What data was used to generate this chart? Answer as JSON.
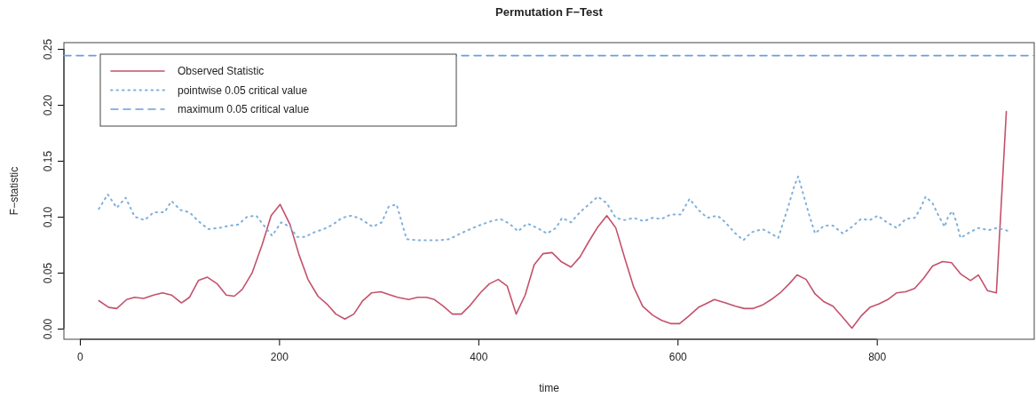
{
  "chart_data": {
    "type": "line",
    "title": "Permutation F−Test",
    "xlabel": "time",
    "ylabel": "F−statistic",
    "xlim": [
      -16,
      958
    ],
    "ylim": [
      -0.0095,
      0.2556
    ],
    "xticks": [
      0,
      200,
      400,
      600,
      800
    ],
    "yticks": [
      {
        "value": 0,
        "label": "0.00"
      },
      {
        "value": 0.05,
        "label": "0.05"
      },
      {
        "value": 0.1,
        "label": "0.10"
      },
      {
        "value": 0.15,
        "label": "0.15"
      },
      {
        "value": 0.2,
        "label": "0.20"
      },
      {
        "value": 0.25,
        "label": "0.25"
      }
    ],
    "grid": false,
    "legend": "top left",
    "marker": "none",
    "series": [
      {
        "name": "Observed Statistic",
        "color": "#c4516b",
        "line_style": "solid",
        "x": [
          19,
          29,
          37,
          47,
          55,
          64,
          74,
          83,
          92,
          102,
          110,
          119,
          128,
          138,
          147,
          155,
          163,
          173,
          183,
          192,
          201,
          211,
          220,
          229,
          239,
          248,
          257,
          266,
          275,
          284,
          293,
          302,
          312,
          319,
          330,
          339,
          348,
          356,
          365,
          374,
          383,
          392,
          402,
          411,
          420,
          429,
          438,
          447,
          456,
          465,
          474,
          483,
          493,
          502,
          511,
          520,
          529,
          538,
          547,
          556,
          565,
          575,
          584,
          593,
          602,
          611,
          621,
          628,
          637,
          648,
          658,
          667,
          676,
          685,
          694,
          703,
          712,
          720,
          729,
          738,
          747,
          756,
          765,
          775,
          784,
          793,
          802,
          811,
          820,
          829,
          838,
          847,
          856,
          866,
          875,
          884,
          894,
          902,
          911,
          920,
          930
        ],
        "values": [
          0.025,
          0.019,
          0.018,
          0.026,
          0.028,
          0.027,
          0.03,
          0.032,
          0.03,
          0.023,
          0.028,
          0.043,
          0.046,
          0.04,
          0.03,
          0.029,
          0.035,
          0.05,
          0.075,
          0.101,
          0.111,
          0.093,
          0.066,
          0.044,
          0.029,
          0.022,
          0.013,
          0.0085,
          0.013,
          0.025,
          0.032,
          0.033,
          0.03,
          0.028,
          0.026,
          0.028,
          0.028,
          0.026,
          0.02,
          0.013,
          0.013,
          0.021,
          0.032,
          0.04,
          0.044,
          0.038,
          0.013,
          0.03,
          0.057,
          0.067,
          0.068,
          0.06,
          0.055,
          0.064,
          0.078,
          0.091,
          0.101,
          0.09,
          0.063,
          0.037,
          0.02,
          0.012,
          0.0074,
          0.0045,
          0.0045,
          0.011,
          0.019,
          0.022,
          0.026,
          0.023,
          0.02,
          0.018,
          0.018,
          0.021,
          0.026,
          0.032,
          0.04,
          0.048,
          0.044,
          0.031,
          0.024,
          0.02,
          0.011,
          0.0005,
          0.011,
          0.019,
          0.022,
          0.026,
          0.032,
          0.033,
          0.036,
          0.045,
          0.056,
          0.06,
          0.059,
          0.049,
          0.043,
          0.048,
          0.034,
          0.032,
          0.194
        ]
      },
      {
        "name": "pointwise 0.05 critical value",
        "color": "#7fb0dc",
        "line_style": "dotted",
        "x": [
          19,
          28,
          37,
          46,
          55,
          65,
          74,
          85,
          92,
          101,
          110,
          119,
          129,
          140,
          150,
          159,
          168,
          177,
          184,
          193,
          202,
          211,
          218,
          226,
          235,
          245,
          254,
          263,
          273,
          282,
          294,
          303,
          310,
          318,
          328,
          339,
          350,
          361,
          371,
          382,
          392,
          403,
          413,
          422,
          431,
          440,
          449,
          459,
          469,
          478,
          484,
          493,
          502,
          511,
          520,
          529,
          538,
          547,
          556,
          566,
          575,
          584,
          593,
          603,
          612,
          621,
          630,
          640,
          648,
          657,
          666,
          674,
          685,
          694,
          701,
          710,
          717,
          721,
          725,
          732,
          738,
          747,
          756,
          766,
          775,
          784,
          793,
          801,
          810,
          820,
          829,
          838,
          843,
          849,
          856,
          862,
          868,
          872,
          876,
          880,
          884,
          893,
          902,
          912,
          921,
          933
        ],
        "values": [
          0.107,
          0.12,
          0.108,
          0.117,
          0.1,
          0.097,
          0.104,
          0.104,
          0.114,
          0.106,
          0.104,
          0.096,
          0.089,
          0.09,
          0.092,
          0.093,
          0.1,
          0.101,
          0.093,
          0.083,
          0.095,
          0.091,
          0.082,
          0.082,
          0.086,
          0.089,
          0.093,
          0.099,
          0.101,
          0.098,
          0.091,
          0.095,
          0.109,
          0.111,
          0.08,
          0.079,
          0.079,
          0.079,
          0.08,
          0.085,
          0.089,
          0.093,
          0.096,
          0.098,
          0.094,
          0.087,
          0.094,
          0.09,
          0.085,
          0.09,
          0.099,
          0.095,
          0.104,
          0.111,
          0.118,
          0.112,
          0.099,
          0.097,
          0.099,
          0.096,
          0.099,
          0.098,
          0.102,
          0.102,
          0.116,
          0.106,
          0.099,
          0.101,
          0.095,
          0.086,
          0.079,
          0.086,
          0.089,
          0.085,
          0.081,
          0.106,
          0.127,
          0.136,
          0.124,
          0.102,
          0.085,
          0.092,
          0.092,
          0.085,
          0.091,
          0.098,
          0.097,
          0.101,
          0.095,
          0.09,
          0.098,
          0.099,
          0.106,
          0.118,
          0.112,
          0.101,
          0.091,
          0.101,
          0.105,
          0.095,
          0.081,
          0.086,
          0.09,
          0.088,
          0.09,
          0.087
        ]
      },
      {
        "name": "maximum 0.05 critical value",
        "color": "#6a9fd8",
        "line_style": "dashed",
        "x": [
          -16,
          958
        ],
        "values": [
          0.244,
          0.244
        ]
      }
    ]
  }
}
